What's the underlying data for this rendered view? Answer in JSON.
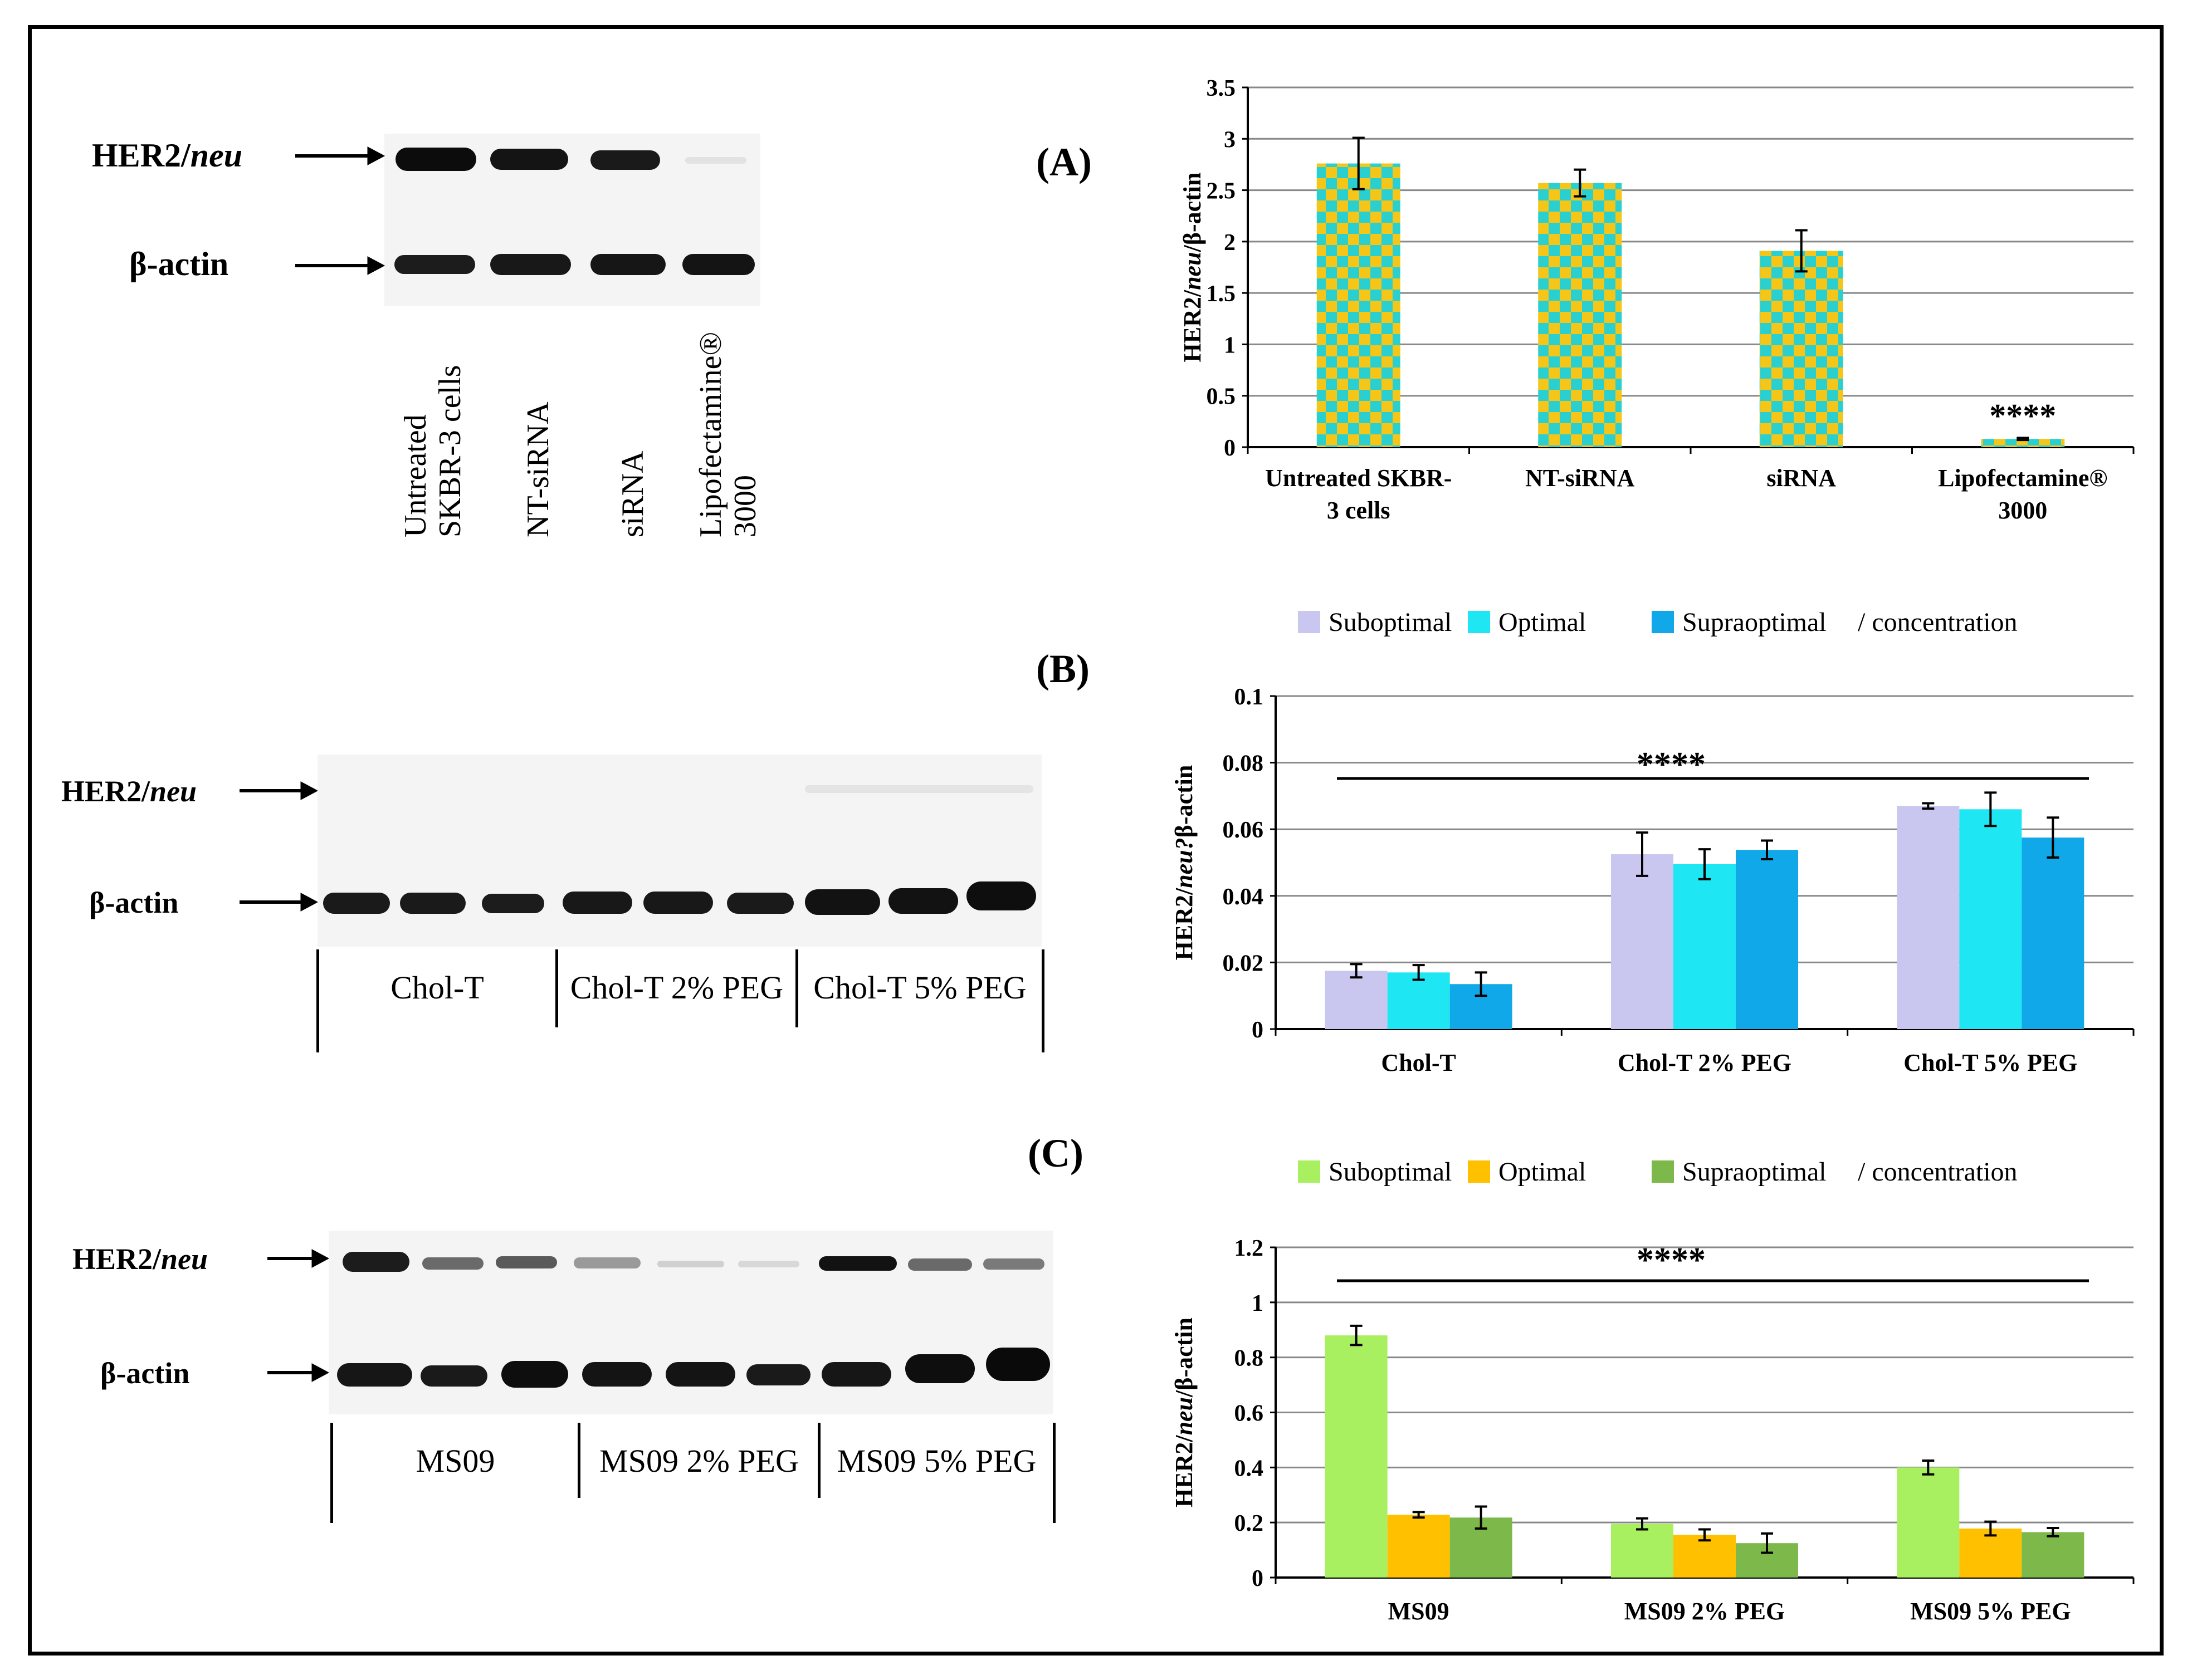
{
  "panels": {
    "a": "(A)",
    "b": "(B)",
    "c": "(C)"
  },
  "blot_labels": {
    "her2": "HER2/",
    "neu": "neu",
    "actin": "β-actin"
  },
  "blot_a": {
    "lanes": [
      {
        "line1": "Untreated",
        "line2": "SKBR-3 cells"
      },
      {
        "line1": "NT-siRNA",
        "line2": ""
      },
      {
        "line1": "siRNA",
        "line2": ""
      },
      {
        "line1": "Lipofectamine®",
        "line2": "3000"
      }
    ]
  },
  "blot_b": {
    "groups": [
      "Chol-T",
      "Chol-T 2% PEG",
      "Chol-T 5% PEG"
    ]
  },
  "blot_c": {
    "groups": [
      "MS09",
      "MS09 2% PEG",
      "MS09 5% PEG"
    ]
  },
  "colors": {
    "checker_a": "#f5c518",
    "checker_b": "#2ad0d0",
    "b1": "#c9c6f0",
    "b2": "#1ee6f2",
    "b3": "#10a8e8",
    "c1": "#a8f060",
    "c2": "#ffc000",
    "c3": "#7cb84a",
    "grid": "#888888"
  },
  "chart_data": [
    {
      "type": "bar",
      "id": "A",
      "ylabel_parts": [
        "HER2/",
        "neu",
        "/β-actin"
      ],
      "ylim": [
        0,
        3.5
      ],
      "yticks": [
        "0",
        "0.5",
        "1",
        "1.5",
        "2",
        "2.5",
        "3",
        "3.5"
      ],
      "categories": [
        {
          "line1": "Untreated SKBR-",
          "line2": "3 cells"
        },
        {
          "line1": "NT-siRNA",
          "line2": ""
        },
        {
          "line1": "siRNA",
          "line2": ""
        },
        {
          "line1": "Lipofectamine®",
          "line2": "3000"
        }
      ],
      "series": [
        {
          "name": "HER2/neu",
          "values": [
            2.76,
            2.57,
            1.91,
            0.08
          ],
          "errors": [
            0.25,
            0.13,
            0.2,
            0.01
          ]
        }
      ],
      "annotation": "****"
    },
    {
      "type": "bar",
      "id": "B",
      "ylabel_parts": [
        "HER2/",
        "neu?",
        "β-actin"
      ],
      "ylim": [
        0,
        0.1
      ],
      "yticks": [
        "0",
        "0.02",
        "0.04",
        "0.06",
        "0.08",
        "0.1"
      ],
      "categories": [
        "Chol-T",
        "Chol-T 2% PEG",
        "Chol-T 5% PEG"
      ],
      "legend": [
        "Suboptimal",
        "Optimal",
        "Supraoptimal",
        "/ concentration"
      ],
      "series": [
        {
          "name": "Suboptimal",
          "values": [
            0.0175,
            0.0525,
            0.067
          ],
          "errors": [
            0.002,
            0.0065,
            0.0008
          ]
        },
        {
          "name": "Optimal",
          "values": [
            0.017,
            0.0495,
            0.066
          ],
          "errors": [
            0.0022,
            0.0045,
            0.005
          ]
        },
        {
          "name": "Supraoptimal",
          "values": [
            0.0135,
            0.0538,
            0.0575
          ],
          "errors": [
            0.0035,
            0.0028,
            0.006
          ]
        }
      ],
      "annotation": "****"
    },
    {
      "type": "bar",
      "id": "C",
      "ylabel_parts": [
        "HER2/",
        "neu",
        "/β-actin"
      ],
      "ylim": [
        0,
        1.2
      ],
      "yticks": [
        "0",
        "0.2",
        "0.4",
        "0.6",
        "0.8",
        "1",
        "1.2"
      ],
      "categories": [
        "MS09",
        "MS09 2% PEG",
        "MS09 5% PEG"
      ],
      "legend": [
        "Suboptimal",
        "Optimal",
        "Supraoptimal",
        "/ concentration"
      ],
      "series": [
        {
          "name": "Suboptimal",
          "values": [
            0.88,
            0.195,
            0.4
          ],
          "errors": [
            0.035,
            0.02,
            0.025
          ]
        },
        {
          "name": "Optimal",
          "values": [
            0.228,
            0.155,
            0.178
          ],
          "errors": [
            0.01,
            0.02,
            0.025
          ]
        },
        {
          "name": "Supraoptimal",
          "values": [
            0.218,
            0.125,
            0.165
          ],
          "errors": [
            0.04,
            0.035,
            0.015
          ]
        }
      ],
      "annotation": "****"
    }
  ]
}
